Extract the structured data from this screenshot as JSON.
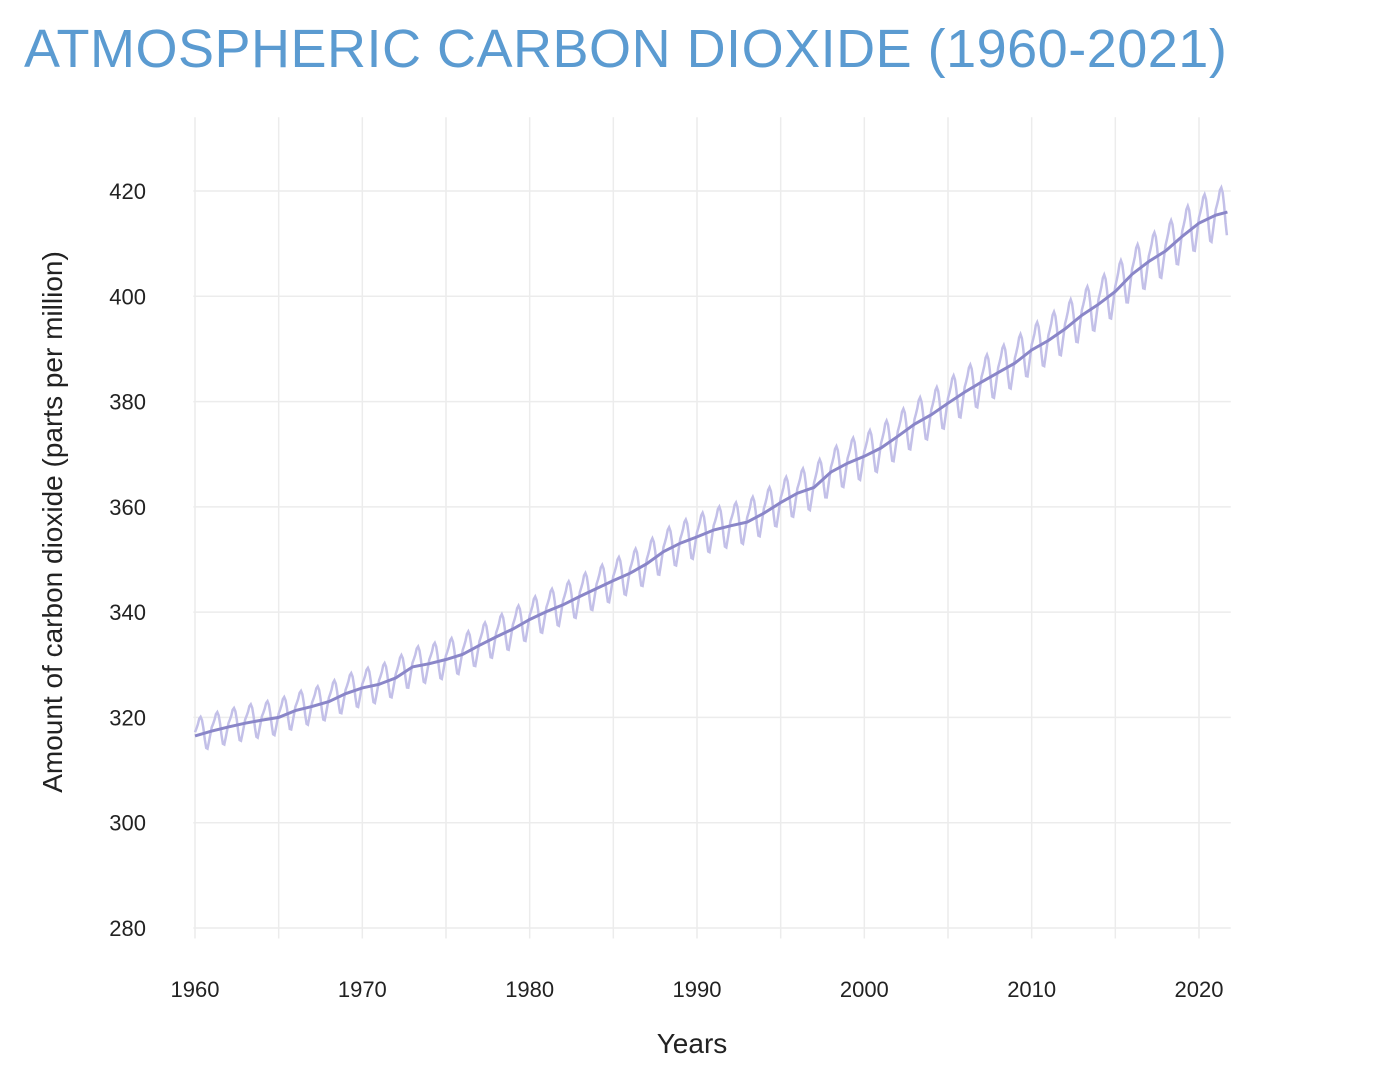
{
  "chart_data": {
    "type": "line",
    "title": "ATMOSPHERIC CARBON DIOXIDE (1960-2021)",
    "xlabel": "Years",
    "ylabel": "Amount of carbon dioxide (parts per million)",
    "xlim": [
      1959.9,
      2021.9
    ],
    "ylim": [
      278,
      434
    ],
    "xticks": [
      1960,
      1970,
      1980,
      1990,
      2000,
      2010,
      2020
    ],
    "yticks": [
      280,
      300,
      320,
      340,
      360,
      380,
      400,
      420
    ],
    "grid": true,
    "legend": "none",
    "colors": {
      "trend": "#8a86c8",
      "seasonal": "#c3c0e8",
      "grid": "#ececec",
      "title": "#5b9bd1"
    },
    "series": [
      {
        "x": [
          1960,
          1961,
          1962,
          1963,
          1964,
          1965,
          1966,
          1967,
          1968,
          1969,
          1970,
          1971,
          1972,
          1973,
          1974,
          1975,
          1976,
          1977,
          1978,
          1979,
          1980,
          1981,
          1982,
          1983,
          1984,
          1985,
          1986,
          1987,
          1988,
          1989,
          1990,
          1991,
          1992,
          1993,
          1994,
          1995,
          1996,
          1997,
          1998,
          1999,
          2000,
          2001,
          2002,
          2003,
          2004,
          2005,
          2006,
          2007,
          2008,
          2009,
          2010,
          2011,
          2012,
          2013,
          2014,
          2015,
          2016,
          2017,
          2018,
          2019,
          2020,
          2021,
          2021.7
        ],
        "values": [
          316.5,
          317.4,
          318.2,
          318.9,
          319.5,
          320.0,
          321.3,
          322.1,
          323.0,
          324.5,
          325.6,
          326.3,
          327.5,
          329.6,
          330.2,
          331.0,
          332.0,
          333.7,
          335.3,
          336.8,
          338.6,
          340.1,
          341.4,
          343.0,
          344.5,
          346.0,
          347.4,
          349.2,
          351.5,
          353.1,
          354.3,
          355.6,
          356.4,
          357.1,
          358.8,
          360.8,
          362.6,
          363.7,
          366.6,
          368.3,
          369.6,
          371.2,
          373.4,
          375.7,
          377.5,
          379.7,
          381.8,
          383.7,
          385.5,
          387.3,
          389.8,
          391.6,
          393.8,
          396.4,
          398.5,
          400.9,
          404.2,
          406.6,
          408.6,
          411.4,
          413.9,
          415.4,
          416.0
        ]
      },
      {
        "seasonal_cycle_ppm": [
          0.7,
          1.3,
          2.0,
          3.0,
          3.3,
          2.6,
          1.0,
          -1.2,
          -2.9,
          -3.1,
          -1.9,
          -0.6
        ]
      }
    ]
  }
}
